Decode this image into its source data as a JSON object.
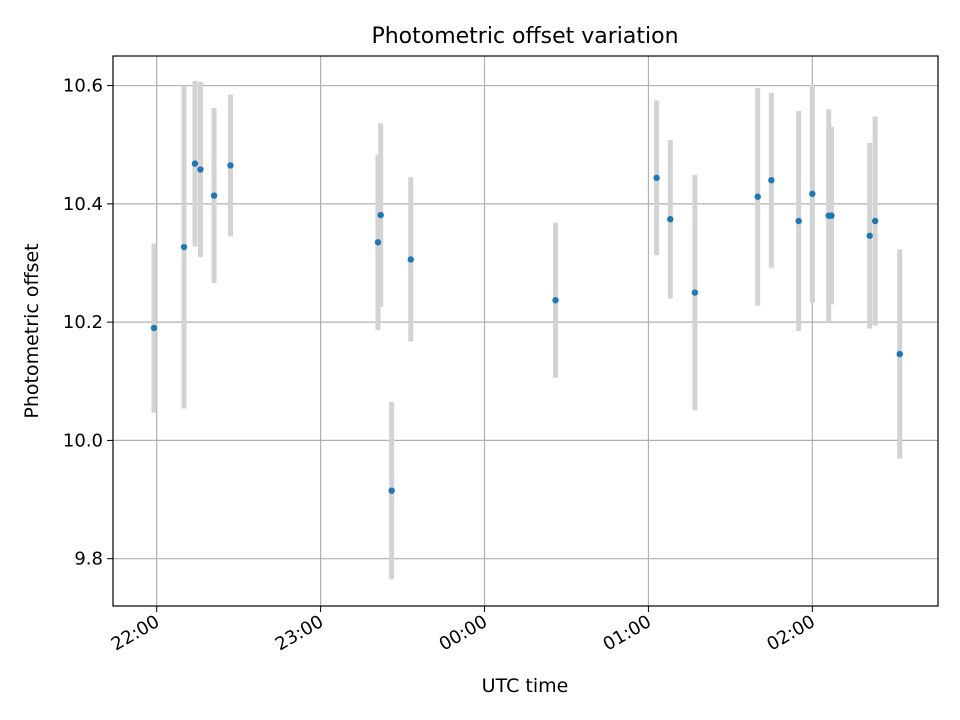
{
  "chart_data": {
    "type": "scatter",
    "title": "Photometric offset variation",
    "xlabel": "UTC time",
    "ylabel": "Photometric offset",
    "x_ticks": [
      "22:00",
      "23:00",
      "00:00",
      "01:00",
      "02:00"
    ],
    "x_tick_times": [
      "21:58",
      "22:58",
      "23:58",
      "00:58",
      "01:58"
    ],
    "x_axis_range": [
      "21:42",
      "02:44"
    ],
    "y_ticks": [
      "9.8",
      "10.0",
      "10.2",
      "10.4",
      "10.6"
    ],
    "ylim": [
      9.72,
      10.65
    ],
    "grid": true,
    "marker_color": "#1f77b4",
    "errorbar_color": "#d3d3d3",
    "points": [
      {
        "t": "21:57",
        "y": 10.19,
        "err": 0.143
      },
      {
        "t": "22:08",
        "y": 10.327,
        "err": 0.273
      },
      {
        "t": "22:12",
        "y": 10.468,
        "err": 0.14
      },
      {
        "t": "22:14",
        "y": 10.458,
        "err": 0.148
      },
      {
        "t": "22:19",
        "y": 10.414,
        "err": 0.148
      },
      {
        "t": "22:25",
        "y": 10.465,
        "err": 0.12
      },
      {
        "t": "23:19",
        "y": 10.335,
        "err": 0.148
      },
      {
        "t": "23:20",
        "y": 10.381,
        "err": 0.155
      },
      {
        "t": "23:24",
        "y": 9.915,
        "err": 0.15
      },
      {
        "t": "23:31",
        "y": 10.306,
        "err": 0.139
      },
      {
        "t": "00:24",
        "y": 10.237,
        "err": 0.131
      },
      {
        "t": "01:01",
        "y": 10.444,
        "err": 0.131
      },
      {
        "t": "01:06",
        "y": 10.374,
        "err": 0.134
      },
      {
        "t": "01:15",
        "y": 10.25,
        "err": 0.199
      },
      {
        "t": "01:38",
        "y": 10.412,
        "err": 0.184
      },
      {
        "t": "01:43",
        "y": 10.44,
        "err": 0.148
      },
      {
        "t": "01:53",
        "y": 10.371,
        "err": 0.186
      },
      {
        "t": "01:58",
        "y": 10.417,
        "err": 0.184
      },
      {
        "t": "02:04",
        "y": 10.38,
        "err": 0.18
      },
      {
        "t": "02:05",
        "y": 10.38,
        "err": 0.15
      },
      {
        "t": "02:19",
        "y": 10.346,
        "err": 0.157
      },
      {
        "t": "02:21",
        "y": 10.371,
        "err": 0.177
      },
      {
        "t": "02:30",
        "y": 10.146,
        "err": 0.177
      }
    ]
  }
}
